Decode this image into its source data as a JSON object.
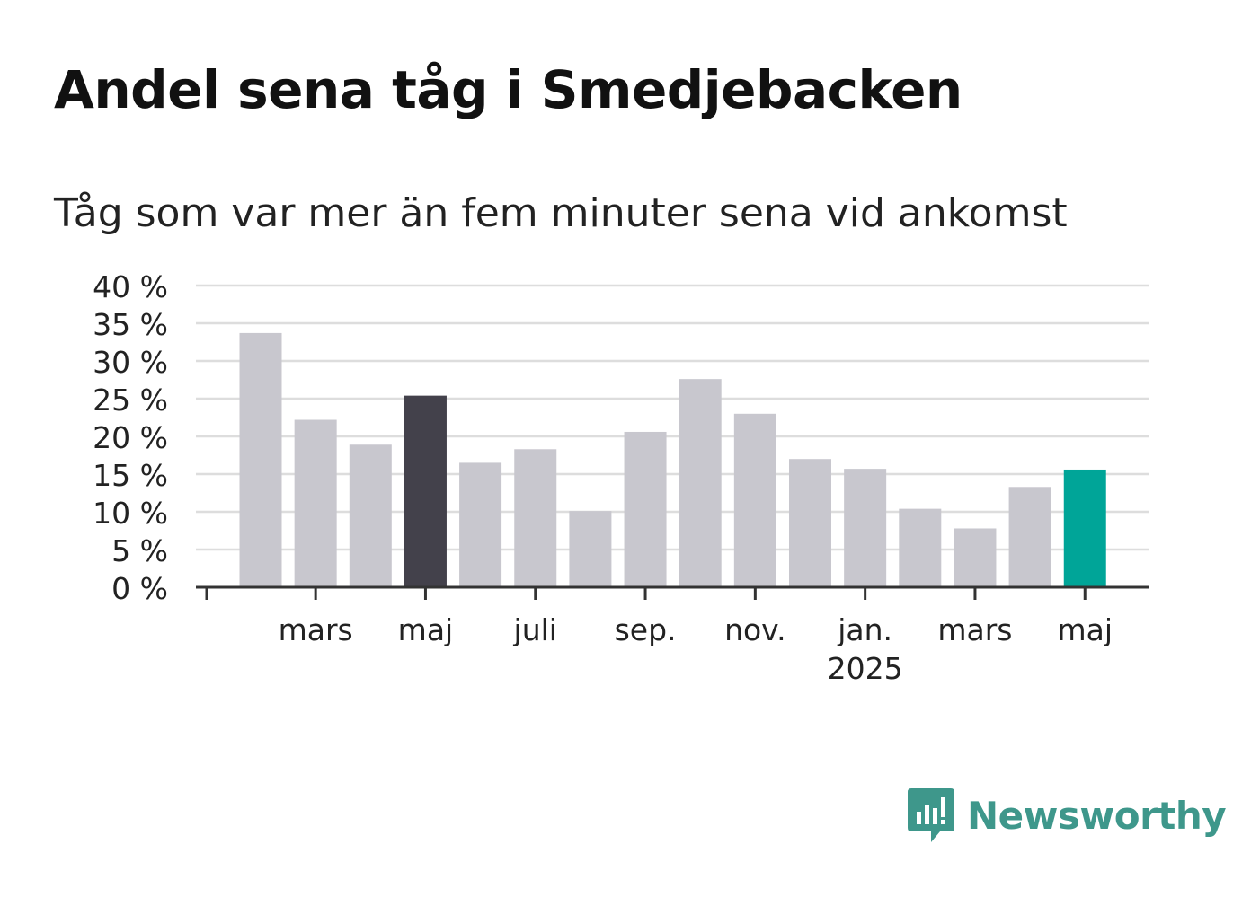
{
  "title": "Andel sena tåg i Smedjebacken",
  "subtitle": "Tåg som var mer än fem minuter sena vid ankomst",
  "logo": {
    "text": "Newsworthy",
    "icon": "bar-chart-speech-bubble-icon",
    "color": "#3e978b"
  },
  "colors": {
    "default_bar": "#c8c7ce",
    "highlight_dark": "#43414b",
    "highlight_latest": "#00a598",
    "grid": "#dddddd",
    "axis": "#333333",
    "text": "#222222"
  },
  "chart_data": {
    "type": "bar",
    "y_unit": "%",
    "ylim": [
      0,
      40
    ],
    "yticks": [
      0,
      5,
      10,
      15,
      20,
      25,
      30,
      35,
      40
    ],
    "ytick_labels": [
      "0 %",
      "5 %",
      "10 %",
      "15 %",
      "20 %",
      "25 %",
      "30 %",
      "35 %",
      "40 %"
    ],
    "grid": true,
    "categories": [
      "2024-02",
      "2024-03",
      "2024-04",
      "2024-05",
      "2024-06",
      "2024-07",
      "2024-08",
      "2024-09",
      "2024-10",
      "2024-11",
      "2024-12",
      "2025-01",
      "2025-02",
      "2025-03",
      "2025-04",
      "2025-05"
    ],
    "values": [
      33.7,
      22.2,
      18.9,
      25.4,
      16.5,
      18.3,
      10.1,
      20.6,
      27.6,
      23.0,
      17.0,
      15.7,
      10.4,
      7.8,
      13.3,
      15.6
    ],
    "highlight": {
      "2024-05": "dark",
      "2025-05": "latest"
    },
    "x_tick_labels": [
      {
        "category": "2024-03",
        "label": "mars"
      },
      {
        "category": "2024-05",
        "label": "maj"
      },
      {
        "category": "2024-07",
        "label": "juli"
      },
      {
        "category": "2024-09",
        "label": "sep."
      },
      {
        "category": "2024-11",
        "label": "nov."
      },
      {
        "category": "2025-01",
        "label": "jan.",
        "sublabel": "2025"
      },
      {
        "category": "2025-03",
        "label": "mars"
      },
      {
        "category": "2025-05",
        "label": "maj"
      }
    ]
  }
}
